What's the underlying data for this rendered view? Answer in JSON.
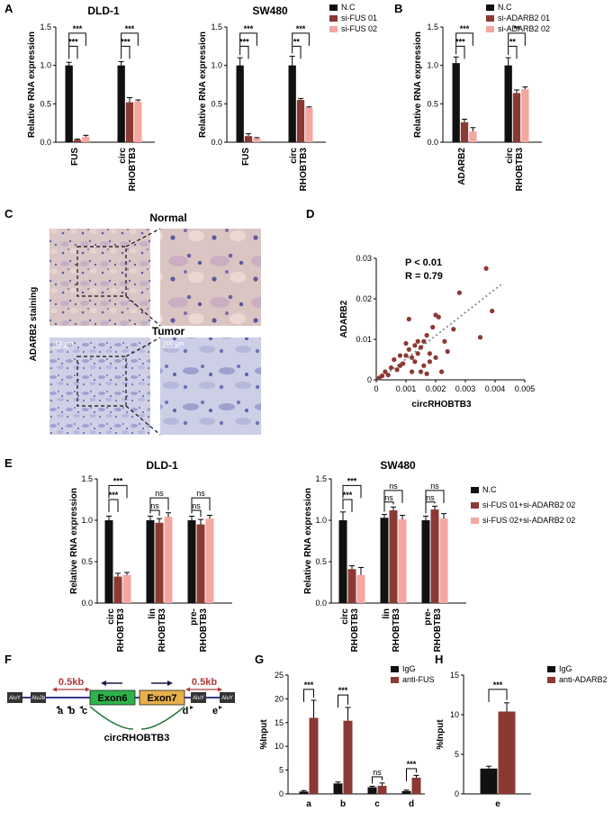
{
  "colors": {
    "nc": "#111111",
    "s1": "#8b3a33",
    "s2": "#f4a7a0",
    "dot": "#8b3a33",
    "trend": "#888888",
    "ex6": "#2db34a",
    "ex7": "#e6b04a",
    "arc": "#b23a3a",
    "circ": "#2a7a40",
    "dark": "#333333"
  },
  "panels": [
    {
      "key": "A",
      "label": "A"
    },
    {
      "key": "B",
      "label": "B"
    },
    {
      "key": "C",
      "label": "C"
    },
    {
      "key": "D",
      "label": "D"
    },
    {
      "key": "E",
      "label": "E"
    },
    {
      "key": "F",
      "label": "F"
    },
    {
      "key": "G",
      "label": "G"
    },
    {
      "key": "H",
      "label": "H"
    }
  ],
  "chart_data": [
    {
      "id": "A1",
      "type": "bar",
      "title": "DLD-1",
      "ylabel": "Relative RNA expression",
      "ylim": [
        0,
        1.5
      ],
      "yticks": [
        "0.0",
        "0.5",
        "1.0",
        "1.5"
      ],
      "categories": [
        [
          "FUS"
        ],
        [
          "circ",
          "RHOBTB3"
        ]
      ],
      "series": [
        {
          "name": "",
          "values": [
            1.0,
            1.0
          ],
          "err": [
            0.04,
            0.05
          ]
        },
        {
          "name": "",
          "values": [
            0.03,
            0.52
          ],
          "err": [
            0.01,
            0.06
          ]
        },
        {
          "name": "",
          "values": [
            0.07,
            0.53
          ],
          "err": [
            0.02,
            0.02
          ]
        }
      ],
      "sig": [
        {
          "cat": 0,
          "from": 0,
          "to": 1,
          "y": 1.25,
          "text": "***"
        },
        {
          "cat": 0,
          "from": 0,
          "to": 2,
          "y": 1.42,
          "text": "***"
        },
        {
          "cat": 1,
          "from": 0,
          "to": 1,
          "y": 1.25,
          "text": "***"
        },
        {
          "cat": 1,
          "from": 0,
          "to": 2,
          "y": 1.42,
          "text": "***"
        }
      ]
    },
    {
      "id": "A2",
      "type": "bar",
      "title": "SW480",
      "ylabel": "Relative RNA expression",
      "ylim": [
        0,
        1.5
      ],
      "yticks": [
        "0.0",
        "0.5",
        "1.0",
        "1.5"
      ],
      "categories": [
        [
          "FUS"
        ],
        [
          "circ",
          "RHOBTB3"
        ]
      ],
      "series": [
        {
          "name": "N.C",
          "values": [
            1.0,
            1.0
          ],
          "err": [
            0.1,
            0.12
          ]
        },
        {
          "name": "si-FUS 01",
          "values": [
            0.08,
            0.55
          ],
          "err": [
            0.03,
            0.02
          ]
        },
        {
          "name": "si-FUS 02",
          "values": [
            0.05,
            0.45
          ],
          "err": [
            0.01,
            0.01
          ]
        }
      ],
      "sig": [
        {
          "cat": 0,
          "from": 0,
          "to": 1,
          "y": 1.25,
          "text": "***"
        },
        {
          "cat": 0,
          "from": 0,
          "to": 2,
          "y": 1.42,
          "text": "***"
        },
        {
          "cat": 1,
          "from": 0,
          "to": 1,
          "y": 1.25,
          "text": "**"
        },
        {
          "cat": 1,
          "from": 0,
          "to": 2,
          "y": 1.42,
          "text": "***"
        }
      ]
    },
    {
      "id": "B",
      "type": "bar",
      "title": "",
      "ylabel": "Relative RNA expression",
      "ylim": [
        0,
        1.5
      ],
      "yticks": [
        "0.0",
        "0.5",
        "1.0",
        "1.5"
      ],
      "categories": [
        [
          "ADARB2"
        ],
        [
          "circ",
          "RHOBTB3"
        ]
      ],
      "series": [
        {
          "name": "N.C",
          "values": [
            1.03,
            1.0
          ],
          "err": [
            0.08,
            0.1
          ]
        },
        {
          "name": "si-ADARB2 01",
          "values": [
            0.26,
            0.64
          ],
          "err": [
            0.04,
            0.04
          ]
        },
        {
          "name": "si-ADARB2 02",
          "values": [
            0.14,
            0.69
          ],
          "err": [
            0.05,
            0.03
          ]
        }
      ],
      "sig": [
        {
          "cat": 0,
          "from": 0,
          "to": 1,
          "y": 1.25,
          "text": "***"
        },
        {
          "cat": 0,
          "from": 0,
          "to": 2,
          "y": 1.42,
          "text": "***"
        },
        {
          "cat": 1,
          "from": 0,
          "to": 1,
          "y": 1.25,
          "text": "**"
        },
        {
          "cat": 1,
          "from": 0,
          "to": 2,
          "y": 1.42,
          "text": "**"
        }
      ]
    },
    {
      "id": "D",
      "type": "scatter",
      "xlabel": "circRHOBTB3",
      "ylabel": "ADARB2",
      "xlim": [
        0,
        0.005
      ],
      "ylim": [
        0,
        0.03
      ],
      "xticks": [
        "0",
        "0.001",
        "0.002",
        "0.003",
        "0.004",
        "0.005"
      ],
      "yticks": [
        "0",
        "0.01",
        "0.02",
        "0.03"
      ],
      "annotations": [
        "P < 0.01",
        "R = 0.79"
      ],
      "trend": [
        [
          0.0001,
          0.0
        ],
        [
          0.0042,
          0.0235
        ]
      ],
      "points": [
        [
          0.0001,
          0.0005
        ],
        [
          0.0002,
          0.001
        ],
        [
          0.0003,
          0.002
        ],
        [
          0.0004,
          0.0012
        ],
        [
          0.0005,
          0.003
        ],
        [
          0.0006,
          0.005
        ],
        [
          0.0007,
          0.0025
        ],
        [
          0.0008,
          0.006
        ],
        [
          0.0008,
          0.0035
        ],
        [
          0.0009,
          0.004
        ],
        [
          0.001,
          0.006
        ],
        [
          0.001,
          0.009
        ],
        [
          0.0011,
          0.015
        ],
        [
          0.0011,
          0.0075
        ],
        [
          0.0012,
          0.002
        ],
        [
          0.0012,
          0.0055
        ],
        [
          0.0013,
          0.0085
        ],
        [
          0.0013,
          0.0045
        ],
        [
          0.0014,
          0.0095
        ],
        [
          0.0014,
          0.0065
        ],
        [
          0.0015,
          0.002
        ],
        [
          0.0015,
          0.008
        ],
        [
          0.0016,
          0.0035
        ],
        [
          0.0016,
          0.0095
        ],
        [
          0.0017,
          0.011
        ],
        [
          0.0017,
          0.0015
        ],
        [
          0.0018,
          0.0065
        ],
        [
          0.0018,
          0.0045
        ],
        [
          0.0019,
          0.013
        ],
        [
          0.002,
          0.016
        ],
        [
          0.002,
          0.0055
        ],
        [
          0.0021,
          0.0155
        ],
        [
          0.0022,
          0.002
        ],
        [
          0.0023,
          0.0095
        ],
        [
          0.0028,
          0.0215
        ],
        [
          0.0037,
          0.0275
        ],
        [
          0.0039,
          0.017
        ],
        [
          0.0035,
          0.0105
        ],
        [
          0.0024,
          0.007
        ],
        [
          0.0026,
          0.0125
        ]
      ]
    },
    {
      "id": "E1",
      "type": "bar",
      "title": "DLD-1",
      "ylabel": "Relative RNA expression",
      "ylim": [
        0,
        1.5
      ],
      "yticks": [
        "0.0",
        "0.5",
        "1.0",
        "1.5"
      ],
      "categories": [
        [
          "circ",
          "RHOBTB3"
        ],
        [
          "lin",
          "RHOBTB3"
        ],
        [
          "pre-",
          "RHOBTB3"
        ]
      ],
      "series": [
        {
          "name": "",
          "values": [
            1.0,
            1.0,
            1.0
          ],
          "err": [
            0.05,
            0.05,
            0.05
          ]
        },
        {
          "name": "",
          "values": [
            0.32,
            0.97,
            0.95
          ],
          "err": [
            0.04,
            0.05,
            0.06
          ]
        },
        {
          "name": "",
          "values": [
            0.34,
            1.04,
            1.02
          ],
          "err": [
            0.03,
            0.05,
            0.04
          ]
        }
      ],
      "sig": [
        {
          "cat": 0,
          "from": 0,
          "to": 1,
          "y": 1.25,
          "text": "***"
        },
        {
          "cat": 0,
          "from": 0,
          "to": 2,
          "y": 1.42,
          "text": "***"
        },
        {
          "cat": 1,
          "from": 0,
          "to": 1,
          "y": 1.12,
          "text": "ns"
        },
        {
          "cat": 1,
          "from": 0,
          "to": 2,
          "y": 1.27,
          "text": "ns"
        },
        {
          "cat": 2,
          "from": 0,
          "to": 1,
          "y": 1.12,
          "text": "ns"
        },
        {
          "cat": 2,
          "from": 0,
          "to": 2,
          "y": 1.27,
          "text": "ns"
        }
      ]
    },
    {
      "id": "E2",
      "type": "bar",
      "title": "SW480",
      "ylabel": "Relative RNA expression",
      "ylim": [
        0,
        1.5
      ],
      "yticks": [
        "0.0",
        "0.5",
        "1.0",
        "1.5"
      ],
      "categories": [
        [
          "circ",
          "RHOBTB3"
        ],
        [
          "lin",
          "RHOBTB3"
        ],
        [
          "pre-",
          "RHOBTB3"
        ]
      ],
      "series": [
        {
          "name": "N.C",
          "values": [
            1.0,
            1.03,
            1.0
          ],
          "err": [
            0.1,
            0.04,
            0.05
          ]
        },
        {
          "name": "si-FUS 01+si-ADARB2 02",
          "values": [
            0.41,
            1.12,
            1.13
          ],
          "err": [
            0.04,
            0.04,
            0.04
          ]
        },
        {
          "name": "si-FUS 02+si-ADARB2 02",
          "values": [
            0.34,
            1.01,
            1.02
          ],
          "err": [
            0.09,
            0.05,
            0.06
          ]
        }
      ],
      "sig": [
        {
          "cat": 0,
          "from": 0,
          "to": 1,
          "y": 1.25,
          "text": "***"
        },
        {
          "cat": 0,
          "from": 0,
          "to": 2,
          "y": 1.42,
          "text": "***"
        },
        {
          "cat": 1,
          "from": 0,
          "to": 1,
          "y": 1.22,
          "text": "ns"
        },
        {
          "cat": 1,
          "from": 0,
          "to": 2,
          "y": 1.36,
          "text": "ns"
        },
        {
          "cat": 2,
          "from": 0,
          "to": 1,
          "y": 1.22,
          "text": "ns"
        },
        {
          "cat": 2,
          "from": 0,
          "to": 2,
          "y": 1.36,
          "text": "ns"
        }
      ]
    },
    {
      "id": "G",
      "type": "bar",
      "title": "",
      "ylabel": "%Input",
      "ylim": [
        0,
        25
      ],
      "yticks": [
        "0",
        "5",
        "10",
        "15",
        "20",
        "25"
      ],
      "categories": [
        [
          "a"
        ],
        [
          "b"
        ],
        [
          "c"
        ],
        [
          "d"
        ]
      ],
      "series": [
        {
          "name": "IgG",
          "values": [
            0.5,
            2.2,
            1.4,
            0.6
          ],
          "err": [
            0.2,
            0.3,
            0.2,
            0.2
          ]
        },
        {
          "name": "anti-FUS",
          "values": [
            16.0,
            15.4,
            1.7,
            3.4
          ],
          "err": [
            3.7,
            2.8,
            0.6,
            0.5
          ]
        }
      ],
      "sig": [
        {
          "cat": 0,
          "from": 0,
          "to": 1,
          "y": 22.0,
          "text": "***"
        },
        {
          "cat": 1,
          "from": 0,
          "to": 1,
          "y": 20.8,
          "text": "***"
        },
        {
          "cat": 2,
          "from": 0,
          "to": 1,
          "y": 3.6,
          "text": "ns"
        },
        {
          "cat": 3,
          "from": 0,
          "to": 1,
          "y": 5.3,
          "text": "***"
        }
      ]
    },
    {
      "id": "H",
      "type": "bar",
      "title": "",
      "ylabel": "%Input",
      "ylim": [
        0,
        15
      ],
      "yticks": [
        "0",
        "5",
        "10",
        "15"
      ],
      "categories": [
        [
          "e"
        ]
      ],
      "series": [
        {
          "name": "IgG",
          "values": [
            3.2
          ],
          "err": [
            0.3
          ]
        },
        {
          "name": "anti-ADARB2",
          "values": [
            10.4
          ],
          "err": [
            1.1
          ]
        }
      ],
      "sig": [
        {
          "cat": 0,
          "from": 0,
          "to": 1,
          "y": 13.2,
          "text": "***"
        }
      ]
    }
  ],
  "histology": {
    "normal_label": "Normal",
    "tumor_label": "Tumor",
    "side_label": "ADARB2 staining",
    "scale_1": "100 μm",
    "scale_2": "200 μm"
  },
  "diagram": {
    "exon6": "Exon6",
    "exon7": "Exon7",
    "dist_left": "0.5kb",
    "dist_right": "0.5kb",
    "circ_label": "circRHOBTB3",
    "primers_left": [
      "a",
      "b",
      "c"
    ],
    "primers_right": [
      "d",
      "e"
    ],
    "alu_boxes": [
      "AluY",
      "AluJb",
      "AluY",
      "AluY"
    ]
  }
}
